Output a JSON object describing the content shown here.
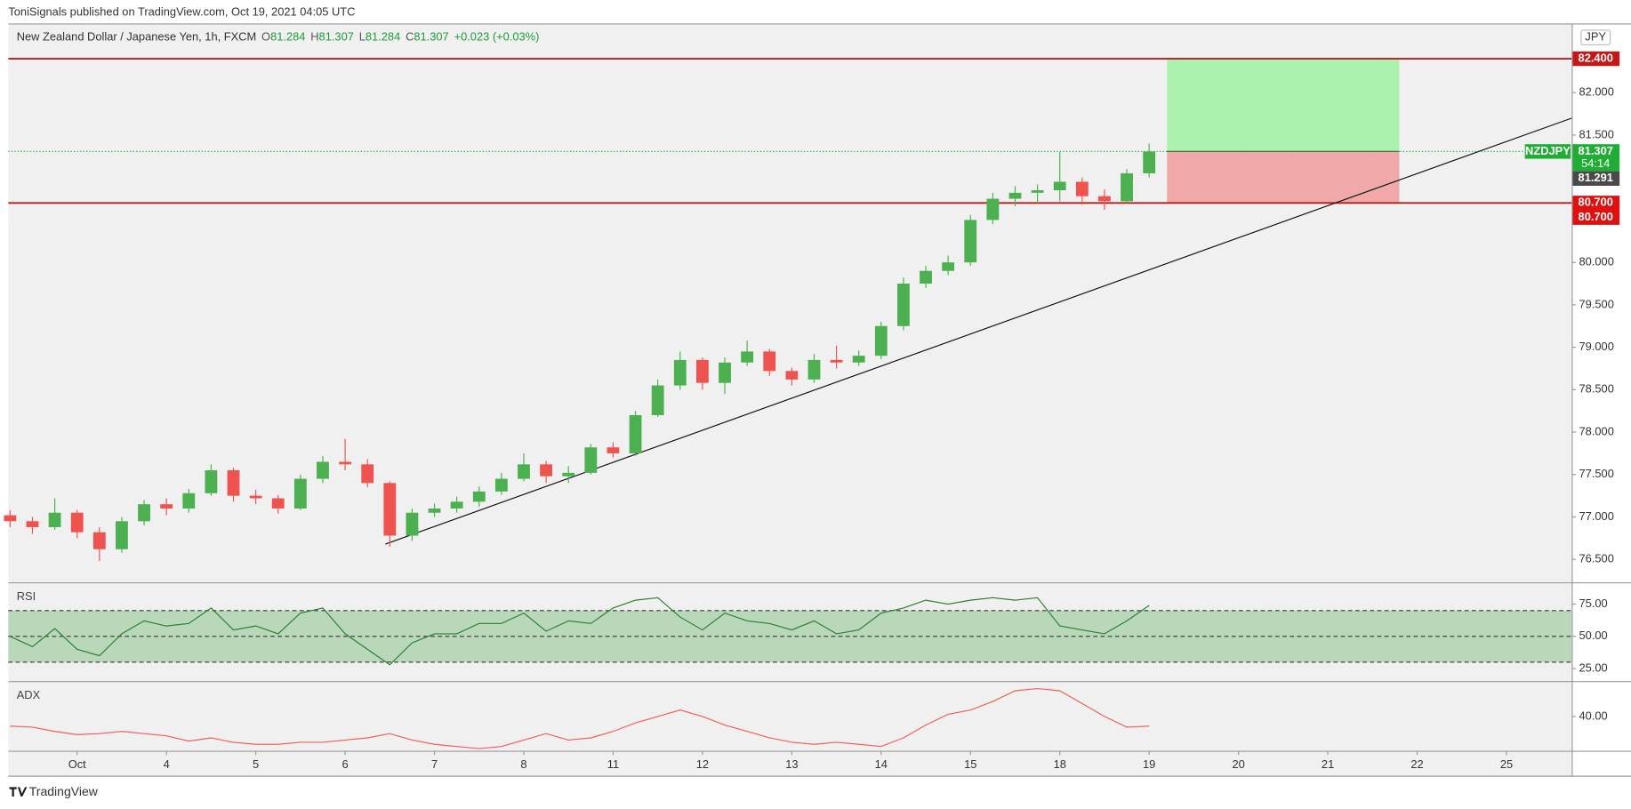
{
  "publisher": "ToniSignals published on TradingView.com, Oct 19, 2021 04:05 UTC",
  "brand": "TradingView",
  "currency": "JPY",
  "chart_data": [
    {
      "type": "candlestick",
      "title": "New Zealand Dollar / Japanese Yen, 1h, FXCM",
      "quote": [
        {
          "key": "O",
          "value": "81.284"
        },
        {
          "key": "H",
          "value": "81.307"
        },
        {
          "key": "L",
          "value": "81.284"
        },
        {
          "key": "C",
          "value": "81.307"
        }
      ],
      "change": "+0.023 (+0.03%)",
      "x": [
        -0.75,
        -0.5,
        -0.25,
        0,
        0.25,
        0.5,
        0.75,
        1,
        1.25,
        1.5,
        1.75,
        2,
        2.25,
        2.5,
        2.75,
        3,
        3.25,
        3.5,
        3.75,
        4,
        4.25,
        4.5,
        4.75,
        5,
        5.25,
        5.5,
        5.75,
        6,
        6.25,
        6.5,
        6.75,
        7,
        7.25,
        7.5,
        7.75,
        8,
        8.25,
        8.5,
        8.75,
        9,
        9.25,
        9.5,
        9.75,
        10,
        10.25,
        10.5,
        10.75,
        11,
        11.25,
        11.5,
        11.75,
        12
      ],
      "open": [
        77.02,
        76.95,
        76.88,
        77.05,
        76.82,
        76.62,
        76.95,
        77.15,
        77.1,
        77.28,
        77.55,
        77.25,
        77.22,
        77.1,
        77.45,
        77.65,
        77.62,
        77.4,
        76.78,
        77.05,
        77.1,
        77.18,
        77.3,
        77.45,
        77.62,
        77.48,
        77.52,
        77.82,
        77.75,
        78.2,
        78.55,
        78.85,
        78.58,
        78.82,
        78.95,
        78.72,
        78.62,
        78.85,
        78.82,
        78.9,
        79.25,
        79.75,
        79.9,
        80.0,
        80.5,
        80.75,
        80.82,
        80.85,
        80.95,
        80.78,
        80.72,
        81.05
      ],
      "high": [
        77.08,
        77.0,
        77.22,
        77.08,
        76.88,
        77.0,
        77.2,
        77.22,
        77.33,
        77.62,
        77.58,
        77.32,
        77.26,
        77.5,
        77.72,
        77.92,
        77.68,
        77.42,
        77.1,
        77.16,
        77.24,
        77.36,
        77.52,
        77.75,
        77.66,
        77.6,
        77.86,
        77.88,
        78.25,
        78.62,
        78.95,
        78.88,
        78.88,
        79.08,
        78.98,
        78.76,
        78.92,
        79.02,
        78.96,
        79.3,
        79.82,
        79.96,
        80.08,
        80.56,
        80.82,
        80.9,
        80.92,
        81.3,
        81.0,
        80.86,
        81.1,
        81.4
      ],
      "low": [
        76.88,
        76.8,
        76.85,
        76.75,
        76.48,
        76.58,
        76.9,
        77.02,
        77.05,
        77.25,
        77.18,
        77.15,
        77.04,
        77.08,
        77.4,
        77.55,
        77.35,
        76.65,
        76.72,
        77.0,
        77.05,
        77.12,
        77.26,
        77.42,
        77.4,
        77.4,
        77.5,
        77.7,
        77.72,
        78.18,
        78.5,
        78.5,
        78.45,
        78.78,
        78.66,
        78.55,
        78.58,
        78.75,
        78.78,
        78.86,
        79.2,
        79.7,
        79.85,
        79.96,
        80.45,
        80.66,
        80.7,
        80.72,
        80.68,
        80.62,
        80.7,
        81.0
      ],
      "close": [
        76.95,
        76.88,
        77.05,
        76.82,
        76.62,
        76.95,
        77.15,
        77.1,
        77.28,
        77.55,
        77.25,
        77.22,
        77.1,
        77.45,
        77.65,
        77.62,
        77.4,
        76.78,
        77.05,
        77.1,
        77.18,
        77.3,
        77.45,
        77.62,
        77.48,
        77.52,
        77.82,
        77.75,
        78.2,
        78.55,
        78.85,
        78.58,
        78.82,
        78.95,
        78.72,
        78.62,
        78.85,
        78.82,
        78.9,
        79.25,
        79.75,
        79.9,
        80.0,
        80.5,
        80.75,
        80.82,
        80.85,
        80.95,
        80.78,
        80.72,
        81.05,
        81.307
      ],
      "up_color": "#4caf50",
      "down_color": "#ef5350",
      "xlim": [
        -0.77,
        16.73
      ],
      "xticks": [
        {
          "value": 0,
          "label": "Oct"
        },
        {
          "value": 1,
          "label": "4"
        },
        {
          "value": 2,
          "label": "5"
        },
        {
          "value": 3,
          "label": "6"
        },
        {
          "value": 4,
          "label": "7"
        },
        {
          "value": 5,
          "label": "8"
        },
        {
          "value": 6,
          "label": "11"
        },
        {
          "value": 7,
          "label": "12"
        },
        {
          "value": 8,
          "label": "13"
        },
        {
          "value": 9,
          "label": "14"
        },
        {
          "value": 10,
          "label": "15"
        },
        {
          "value": 11,
          "label": "18"
        },
        {
          "value": 12,
          "label": "19"
        },
        {
          "value": 13,
          "label": "20"
        },
        {
          "value": 14,
          "label": "21"
        },
        {
          "value": 15,
          "label": "22"
        },
        {
          "value": 16,
          "label": "25"
        }
      ],
      "ylim": [
        76.23,
        82.81
      ],
      "yticks": [
        {
          "value": 76.5,
          "label": "76.500"
        },
        {
          "value": 77,
          "label": "77.000"
        },
        {
          "value": 77.5,
          "label": "77.500"
        },
        {
          "value": 78,
          "label": "78.000"
        },
        {
          "value": 78.5,
          "label": "78.500"
        },
        {
          "value": 79,
          "label": "79.000"
        },
        {
          "value": 79.5,
          "label": "79.500"
        },
        {
          "value": 80,
          "label": "80.000"
        },
        {
          "value": 80.5,
          "label": "80.500"
        },
        {
          "value": 81,
          "label": "81.000"
        },
        {
          "value": 81.5,
          "label": "81.500"
        },
        {
          "value": 82,
          "label": "82.000"
        }
      ],
      "grid": false,
      "hlines": [
        82.4,
        80.7
      ],
      "hline_color": "#b71c1c",
      "position": {
        "x": [
          12.2,
          14.8
        ],
        "target": 82.4,
        "entry": 81.307,
        "stop": 80.7,
        "target_color": "#abf2ae",
        "stop_color": "#f0a8a8"
      },
      "trendline": {
        "x": [
          3.45,
          16.73
        ],
        "y": [
          76.68,
          81.7
        ],
        "color": "#111111"
      },
      "markers": [
        {
          "value": 82.4,
          "label": "82.400",
          "color": "#c41717"
        },
        {
          "value": 81.307,
          "label": "81.307",
          "name": "NZDJPY",
          "countdown": "54:14",
          "color": "#1fad35"
        },
        {
          "value": 81.291,
          "label": "81.291",
          "color": "#4a4a4a"
        },
        {
          "value": 80.7,
          "label": "80.700",
          "color": "#e01010"
        },
        {
          "value": 80.7,
          "label": "80.700",
          "color": "#e01010"
        }
      ]
    },
    {
      "type": "line",
      "title": "RSI",
      "x": [
        -0.75,
        -0.5,
        -0.25,
        0,
        0.25,
        0.5,
        0.75,
        1,
        1.25,
        1.5,
        1.75,
        2,
        2.25,
        2.5,
        2.75,
        3,
        3.25,
        3.5,
        3.75,
        4,
        4.25,
        4.5,
        4.75,
        5,
        5.25,
        5.5,
        5.75,
        6,
        6.25,
        6.5,
        6.75,
        7,
        7.25,
        7.5,
        7.75,
        8,
        8.25,
        8.5,
        8.75,
        9,
        9.25,
        9.5,
        9.75,
        10,
        10.25,
        10.5,
        10.75,
        11,
        11.25,
        11.5,
        11.75,
        12
      ],
      "values": [
        50,
        42,
        56,
        40,
        35,
        52,
        62,
        58,
        60,
        72,
        55,
        58,
        52,
        68,
        72,
        52,
        40,
        28,
        45,
        52,
        52,
        60,
        60,
        68,
        54,
        62,
        60,
        72,
        78,
        80,
        65,
        55,
        68,
        62,
        60,
        55,
        62,
        52,
        55,
        68,
        72,
        78,
        75,
        78,
        80,
        78,
        80,
        58,
        55,
        52,
        62,
        74
      ],
      "color": "#2e7d32",
      "band": [
        30,
        70
      ],
      "band_color": "#b9d8b9",
      "levels": [
        70,
        50,
        30
      ],
      "xlim": [
        -0.77,
        16.73
      ],
      "ylim": [
        15.3,
        91.1
      ],
      "yticks": [
        {
          "value": 75,
          "label": "75.00"
        },
        {
          "value": 50,
          "label": "50.00"
        },
        {
          "value": 25,
          "label": "25.00"
        }
      ]
    },
    {
      "type": "line",
      "title": "ADX",
      "x": [
        -0.75,
        -0.5,
        -0.25,
        0,
        0.25,
        0.5,
        0.75,
        1,
        1.25,
        1.5,
        1.75,
        2,
        2.25,
        2.5,
        2.75,
        3,
        3.25,
        3.5,
        3.75,
        4,
        4.25,
        4.5,
        4.75,
        5,
        5.25,
        5.5,
        5.75,
        6,
        6.25,
        6.5,
        6.75,
        7,
        7.25,
        7.5,
        7.75,
        8,
        8.25,
        8.5,
        8.75,
        9,
        9.25,
        9.5,
        9.75,
        10,
        10.25,
        10.5,
        10.75,
        11,
        11.25,
        11.5,
        11.75,
        12
      ],
      "values": [
        35.5,
        35,
        33,
        31.5,
        32,
        33,
        32,
        31,
        28.5,
        30,
        28,
        27,
        27,
        28,
        28,
        29,
        30,
        32,
        29,
        27,
        26,
        25,
        26,
        29,
        32,
        29,
        30,
        33,
        37,
        40,
        43,
        40,
        36,
        33,
        30,
        28,
        27,
        28,
        27,
        26,
        30,
        36,
        41,
        43,
        47,
        52,
        53,
        52,
        46,
        40,
        35,
        35.5
      ],
      "color": "#f0605a",
      "xlim": [
        -0.77,
        16.73
      ],
      "ylim": [
        24,
        56
      ],
      "yticks": [
        {
          "value": 40,
          "label": "40.00"
        }
      ]
    }
  ]
}
